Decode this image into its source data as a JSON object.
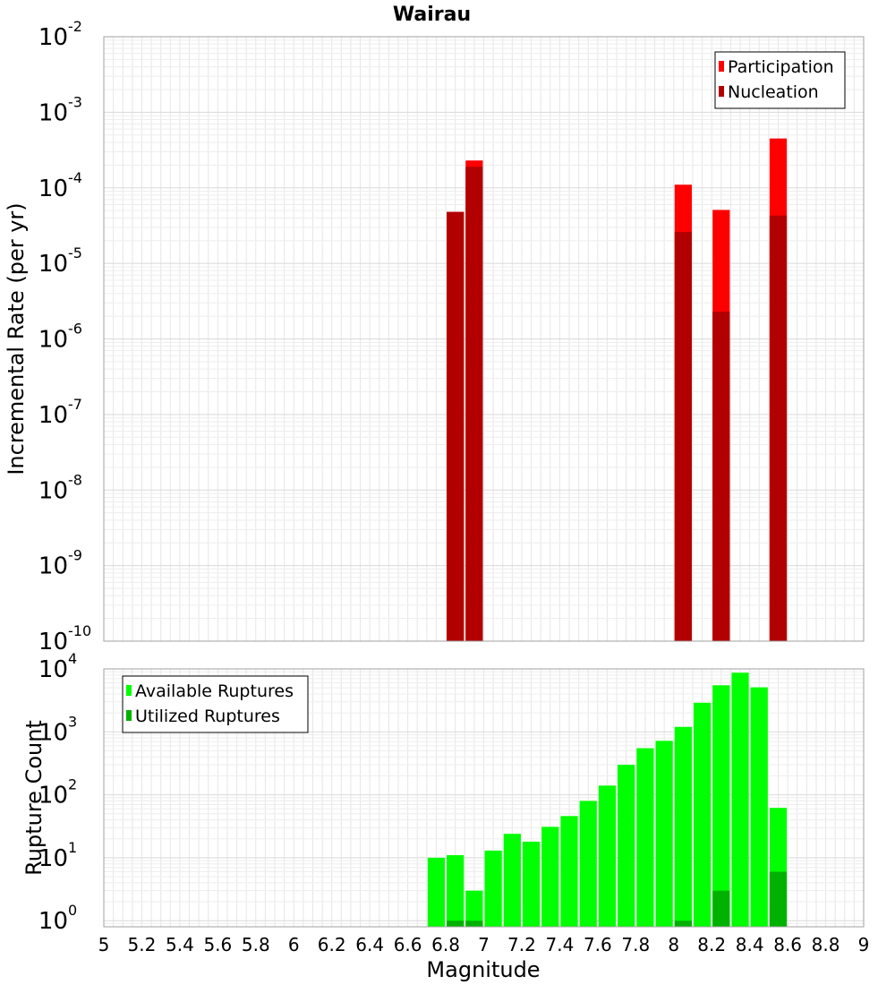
{
  "chart_data": [
    {
      "type": "bar",
      "title": "Wairau",
      "ylabel": "Incremental Rate (per yr)",
      "xlabel": "",
      "xlim": [
        5,
        9
      ],
      "ylim": [
        1e-10,
        0.01
      ],
      "y_scale": "log",
      "y_tick_exponents": [
        -10,
        -9,
        -8,
        -7,
        -6,
        -5,
        -4,
        -3,
        -2
      ],
      "bin_width": 0.1,
      "grid": true,
      "legend_position": "top-right",
      "series": [
        {
          "name": "Participation",
          "color": "#ff0000",
          "x": [
            6.85,
            6.95,
            8.05,
            8.25,
            8.55
          ],
          "values": [
            4.8e-05,
            0.00023,
            0.00011,
            5.1e-05,
            0.00045
          ]
        },
        {
          "name": "Nucleation",
          "color": "#b20000",
          "x": [
            6.85,
            6.95,
            8.05,
            8.25,
            8.55
          ],
          "values": [
            4.8e-05,
            0.00019,
            2.6e-05,
            2.3e-06,
            4.3e-05
          ]
        }
      ]
    },
    {
      "type": "bar",
      "title": "",
      "ylabel": "Rupture Count",
      "xlabel": "Magnitude",
      "xlim": [
        5,
        9
      ],
      "ylim": [
        0.8,
        10000
      ],
      "y_scale": "log",
      "y_tick_exponents": [
        0,
        1,
        2,
        3,
        4
      ],
      "x_ticks": [
        "5",
        "5.2",
        "5.4",
        "5.6",
        "5.8",
        "6",
        "6.2",
        "6.4",
        "6.6",
        "6.8",
        "7",
        "7.2",
        "7.4",
        "7.6",
        "7.8",
        "8",
        "8.2",
        "8.4",
        "8.6",
        "8.8",
        "9"
      ],
      "bin_width": 0.1,
      "grid": true,
      "legend_position": "top-left",
      "series": [
        {
          "name": "Available Ruptures",
          "color": "#00ff00",
          "x": [
            6.75,
            6.85,
            6.95,
            7.05,
            7.15,
            7.25,
            7.35,
            7.45,
            7.55,
            7.65,
            7.75,
            7.85,
            7.95,
            8.05,
            8.15,
            8.25,
            8.35,
            8.45,
            8.55
          ],
          "values": [
            10,
            11,
            3,
            13,
            24,
            18,
            31,
            46,
            80,
            140,
            300,
            550,
            720,
            1200,
            2900,
            5500,
            8700,
            5100,
            62
          ]
        },
        {
          "name": "Utilized Ruptures",
          "color": "#00b200",
          "x": [
            6.85,
            6.95,
            8.05,
            8.25,
            8.55
          ],
          "values": [
            1,
            1,
            1,
            3,
            6
          ]
        }
      ]
    }
  ]
}
